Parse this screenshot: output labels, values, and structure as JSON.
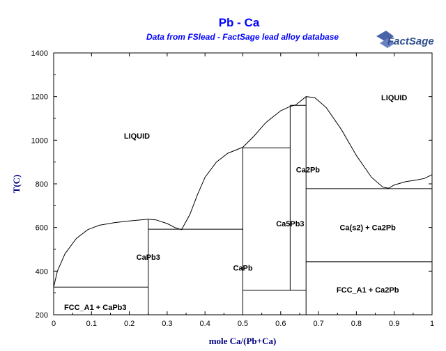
{
  "chart_data": {
    "type": "line",
    "title": "Pb - Ca",
    "subtitle": "Data from FSlead - FactSage lead alloy database",
    "logo_text": "FactSage",
    "xlabel": "mole Ca/(Pb+Ca)",
    "ylabel": "T(C)",
    "xlim": [
      0,
      1
    ],
    "ylim": [
      200,
      1400
    ],
    "x_ticks": [
      0,
      0.1,
      0.2,
      0.3,
      0.4,
      0.5,
      0.6,
      0.7,
      0.8,
      0.9,
      1
    ],
    "x_tick_labels": [
      "0",
      "0.1",
      "0.2",
      "0.3",
      "0.4",
      "0.5",
      "0.6",
      "0.7",
      "0.8",
      "0.9",
      "1"
    ],
    "y_ticks": [
      200,
      400,
      600,
      800,
      1000,
      1200,
      1400
    ],
    "y_tick_labels": [
      "200",
      "400",
      "600",
      "800",
      "1000",
      "1200",
      "1400"
    ],
    "grid": false,
    "colors": {
      "title": "#0000ff",
      "axis_label": "#000080",
      "line": "#000000"
    },
    "liquidus": [
      [
        0,
        327
      ],
      [
        0.01,
        400
      ],
      [
        0.03,
        480
      ],
      [
        0.06,
        550
      ],
      [
        0.09,
        590
      ],
      [
        0.12,
        610
      ],
      [
        0.16,
        622
      ],
      [
        0.2,
        630
      ],
      [
        0.25,
        638
      ],
      [
        0.27,
        635
      ],
      [
        0.3,
        618
      ],
      [
        0.32,
        600
      ],
      [
        0.338,
        590
      ],
      [
        0.36,
        660
      ],
      [
        0.38,
        750
      ],
      [
        0.4,
        830
      ],
      [
        0.43,
        900
      ],
      [
        0.46,
        940
      ],
      [
        0.5,
        968
      ],
      [
        0.53,
        1020
      ],
      [
        0.56,
        1080
      ],
      [
        0.6,
        1135
      ],
      [
        0.625,
        1155
      ],
      [
        0.64,
        1162
      ],
      [
        0.667,
        1200
      ],
      [
        0.69,
        1195
      ],
      [
        0.72,
        1150
      ],
      [
        0.76,
        1050
      ],
      [
        0.8,
        930
      ],
      [
        0.84,
        830
      ],
      [
        0.87,
        785
      ],
      [
        0.885,
        780
      ],
      [
        0.9,
        795
      ],
      [
        0.93,
        810
      ],
      [
        0.96,
        818
      ],
      [
        0.98,
        825
      ],
      [
        1.0,
        842
      ]
    ],
    "phase_boundaries": [
      {
        "x": [
          0,
          0.25
        ],
        "y": [
          327,
          327
        ]
      },
      {
        "x": [
          0.25,
          0.25
        ],
        "y": [
          200,
          638
        ]
      },
      {
        "x": [
          0.25,
          0.5
        ],
        "y": [
          592,
          592
        ]
      },
      {
        "x": [
          0.5,
          0.5
        ],
        "y": [
          200,
          968
        ]
      },
      {
        "x": [
          0.5,
          0.625
        ],
        "y": [
          965,
          965
        ]
      },
      {
        "x": [
          0.625,
          0.625
        ],
        "y": [
          312,
          1160
        ]
      },
      {
        "x": [
          0.625,
          0.667
        ],
        "y": [
          1160,
          1160
        ]
      },
      {
        "x": [
          0.5,
          0.667
        ],
        "y": [
          312,
          312
        ]
      },
      {
        "x": [
          0.667,
          0.667
        ],
        "y": [
          200,
          1200
        ]
      },
      {
        "x": [
          0.667,
          1.0
        ],
        "y": [
          778,
          778
        ]
      },
      {
        "x": [
          0.667,
          1.0
        ],
        "y": [
          443,
          443
        ]
      }
    ],
    "annotations": [
      {
        "text": "LIQUID",
        "x": 0.22,
        "y": 1020
      },
      {
        "text": "LIQUID",
        "x": 0.9,
        "y": 1195
      },
      {
        "text": "Ca2Pb",
        "x": 0.672,
        "y": 865
      },
      {
        "text": "Ca5Pb3",
        "x": 0.625,
        "y": 618
      },
      {
        "text": "Ca(s2) + Ca2Pb",
        "x": 0.83,
        "y": 600
      },
      {
        "text": "CaPb3",
        "x": 0.25,
        "y": 465
      },
      {
        "text": "CaPb",
        "x": 0.5,
        "y": 415
      },
      {
        "text": "FCC_A1 + CaPb3",
        "x": 0.11,
        "y": 235
      },
      {
        "text": "FCC_A1 + Ca2Pb",
        "x": 0.83,
        "y": 315
      }
    ]
  }
}
